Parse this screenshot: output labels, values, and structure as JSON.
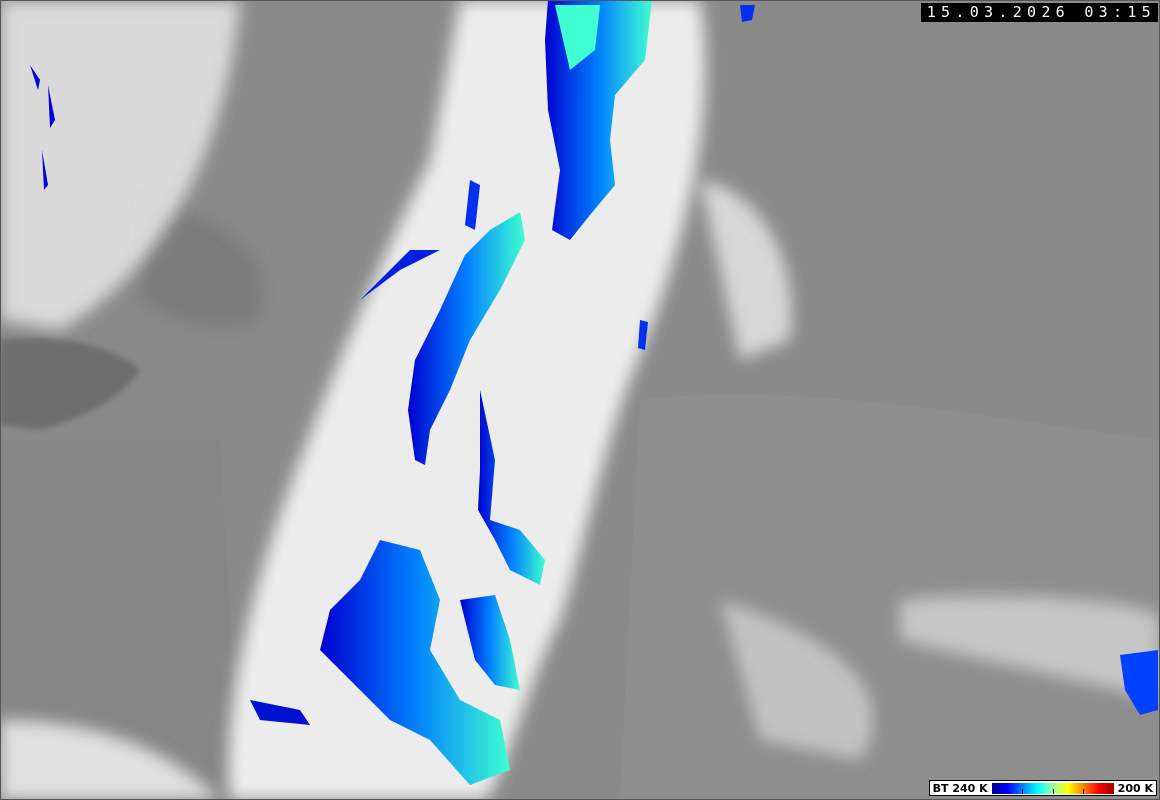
{
  "timestamp": "15.03.2026 03:15",
  "legend": {
    "label_left": "BT 240 K",
    "label_right": "200 K",
    "gradient_colors": [
      "#00008c",
      "#0000ff",
      "#0080ff",
      "#00ffff",
      "#a0ffa0",
      "#ffff00",
      "#ff8000",
      "#ff0000",
      "#a00000"
    ]
  },
  "colors": {
    "background_gray": "#8c8c8c",
    "cloud_white": "#f0f0f0",
    "sea_dark": "#707070"
  }
}
